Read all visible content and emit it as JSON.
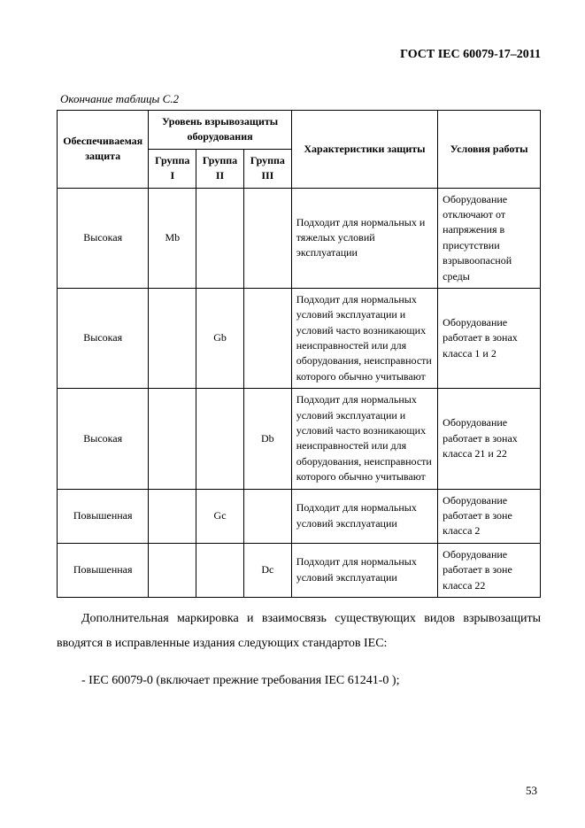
{
  "docId": "ГОСТ IEC 60079-17–2011",
  "caption": "Окончание таблицы С.2",
  "header": {
    "col1": "Обеспечиваемая защита",
    "colGroup": "Уровень взрывозащиты оборудования",
    "g1": "Группа I",
    "g2": "Группа II",
    "g3": "Группа III",
    "col5": "Характеристики защиты",
    "col6": "Условия работы"
  },
  "rows": [
    {
      "a": "Высокая",
      "b": "Mb",
      "c": "",
      "d": "",
      "e": "Подходит для нормальных и тяжелых условий эксплуатации",
      "f": "Оборудование отключают от напряжения в присутствии взрывоопасной среды"
    },
    {
      "a": "Высокая",
      "b": "",
      "c": "Gb",
      "d": "",
      "e": "Подходит для нормальных условий эксплуатации и условий часто возникающих неисправностей или для оборудования, неисправности которого обычно учитывают",
      "f": "Оборудование работает в зонах класса 1 и 2"
    },
    {
      "a": "Высокая",
      "b": "",
      "c": "",
      "d": "Db",
      "e": "Подходит для нормальных условий эксплуатации и условий часто возникающих неисправностей или для оборудования, неисправности которого обычно учитывают",
      "f": "Оборудование работает в зонах класса 21 и 22"
    },
    {
      "a": "Повышенная",
      "b": "",
      "c": "Gc",
      "d": "",
      "e": "Подходит для нормальных условий эксплуатации",
      "f": "Оборудование работает в зоне класса 2"
    },
    {
      "a": "Повышенная",
      "b": "",
      "c": "",
      "d": "Dc",
      "e": "Подходит для нормальных условий эксплуатации",
      "f": "Оборудование работает в зоне класса 22"
    }
  ],
  "para1": "Дополнительная маркировка и взаимосвязь существующих видов взрывозащиты вводятся в исправленные издания следующих стандартов IEC:",
  "list1": "- IEC 60079-0 (включает прежние требования IEC 61241-0 );",
  "pageNum": "53",
  "style": {
    "font_body": 14,
    "font_table": 12,
    "border_color": "#000000",
    "bg": "#ffffff"
  }
}
